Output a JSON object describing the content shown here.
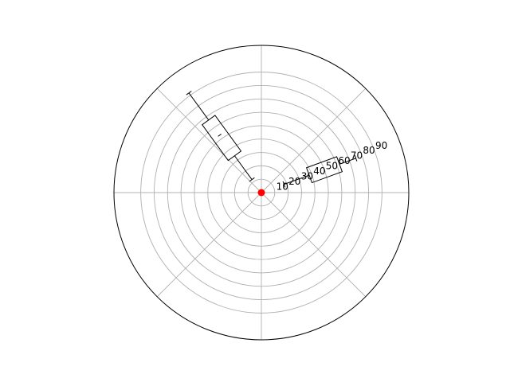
{
  "chart_data": {
    "type": "box",
    "projection": "polar",
    "title": "",
    "grid": true,
    "rlim": [
      0,
      110
    ],
    "r_ticks": [
      10,
      20,
      30,
      40,
      50,
      60,
      70,
      80,
      90
    ],
    "r_tick_labels": [
      "10",
      "20",
      "30",
      "40",
      "50",
      "60",
      "70",
      "80",
      "90"
    ],
    "r_label_position_deg": 22.5,
    "theta_gridlines_deg": [
      0,
      45,
      90,
      135,
      180,
      225,
      270,
      315
    ],
    "boxes": [
      {
        "angle_deg": 20,
        "whisker_low": 18,
        "q1": 38,
        "median": 50,
        "q3": 62,
        "whisker_high": 75
      },
      {
        "angle_deg": 126,
        "whisker_low": 12,
        "q1": 34,
        "median": 53,
        "q3": 67,
        "whisker_high": 92
      }
    ],
    "center_point": {
      "r": 0,
      "color": "#ff0000"
    },
    "colors": {
      "box": "#000000",
      "grid": "#b0b0b0",
      "frame": "#000000"
    }
  }
}
